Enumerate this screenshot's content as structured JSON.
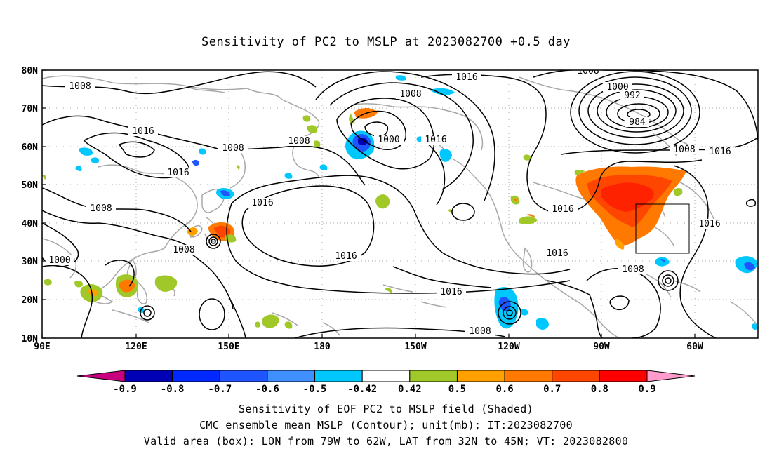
{
  "title": "Sensitivity of PC2 to MSLP at 2023082700 +0.5 day",
  "lat_labels": [
    "80N",
    "70N",
    "60N",
    "50N",
    "40N",
    "30N",
    "20N",
    "10N"
  ],
  "lon_labels": [
    "90E",
    "120E",
    "150E",
    "180",
    "150W",
    "120W",
    "90W",
    "60W"
  ],
  "contour_labels": [
    "1008",
    "1016",
    "1008",
    "1008",
    "1016",
    "1016",
    "1008",
    "1000",
    "1008",
    "1016",
    "1008",
    "1000",
    "1016",
    "1016",
    "1016",
    "1008",
    "1008",
    "1000",
    "992",
    "984",
    "1008",
    "1016",
    "1016",
    "1016",
    "1008",
    "1016"
  ],
  "colorbar": {
    "labels": [
      "-0.9",
      "-0.8",
      "-0.7",
      "-0.6",
      "-0.5",
      "-0.42",
      "0.42",
      "0.5",
      "0.6",
      "0.7",
      "0.8",
      "0.9"
    ],
    "colors": [
      "#0000b4",
      "#0028ff",
      "#1f55ff",
      "#3f8fff",
      "#00c8ff",
      "#ffffff",
      "#a0c828",
      "#ffa000",
      "#ff7800",
      "#ff4600",
      "#ff0000"
    ],
    "low_color": "#c8007d",
    "high_color": "#ff9ccb"
  },
  "valid_box": {
    "lon_from": "79W",
    "lon_to": "62W",
    "lat_from": "32N",
    "lat_to": "45N"
  },
  "footer": {
    "line1": "Sensitivity of EOF PC2 to MSLP field (Shaded)",
    "line2": "CMC ensemble mean MSLP (Contour); unit(mb); IT:2023082700",
    "line3": "Valid area (box): LON from 79W to 62W, LAT from 32N to 45N; VT: 2023082800"
  }
}
